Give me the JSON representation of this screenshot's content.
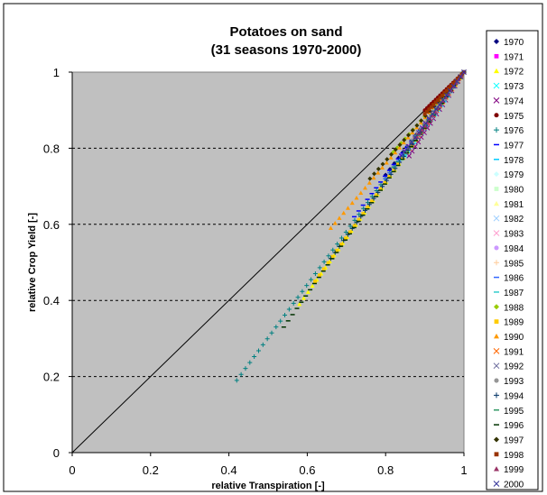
{
  "chart_data": {
    "type": "scatter",
    "title": "Potatoes on sand",
    "subtitle": "(31 seasons 1970-2000)",
    "xlabel": "relative Transpiration [-]",
    "ylabel": "relative Crop Yield [-]",
    "xlim": [
      0,
      1
    ],
    "ylim": [
      0,
      1
    ],
    "xticks": [
      "0",
      "0.2",
      "0.4",
      "0.6",
      "0.8",
      "1"
    ],
    "yticks": [
      "0",
      "0.2",
      "0.4",
      "0.6",
      "0.8",
      "1"
    ],
    "grid": "horizontal dashed",
    "plot_background": "#c0c0c0",
    "legend_position": "right",
    "reference_line": {
      "from": [
        0,
        0
      ],
      "to": [
        1,
        1
      ],
      "color": "#000000"
    },
    "series": [
      {
        "name": "1970",
        "color": "#000080",
        "marker": "diamond",
        "xmin": 0.8,
        "ymin": 0.73
      },
      {
        "name": "1971",
        "color": "#ff00ff",
        "marker": "square",
        "xmin": 0.84,
        "ymin": 0.78
      },
      {
        "name": "1972",
        "color": "#ffff00",
        "marker": "triangle",
        "xmin": 0.58,
        "ymin": 0.39
      },
      {
        "name": "1973",
        "color": "#00ffff",
        "marker": "x",
        "xmin": 0.85,
        "ymin": 0.78
      },
      {
        "name": "1974",
        "color": "#800080",
        "marker": "x",
        "xmin": 0.86,
        "ymin": 0.78
      },
      {
        "name": "1975",
        "color": "#800000",
        "marker": "circle",
        "xmin": 0.9,
        "ymin": 0.9
      },
      {
        "name": "1976",
        "color": "#008080",
        "marker": "plus",
        "xmin": 0.42,
        "ymin": 0.19
      },
      {
        "name": "1977",
        "color": "#0000ff",
        "marker": "dash",
        "xmin": 0.72,
        "ymin": 0.62
      },
      {
        "name": "1978",
        "color": "#00ccff",
        "marker": "dash",
        "xmin": 0.84,
        "ymin": 0.77
      },
      {
        "name": "1979",
        "color": "#ccffff",
        "marker": "diamond",
        "xmin": 0.86,
        "ymin": 0.8
      },
      {
        "name": "1980",
        "color": "#ccffcc",
        "marker": "square",
        "xmin": 0.87,
        "ymin": 0.82
      },
      {
        "name": "1981",
        "color": "#ffff99",
        "marker": "triangle",
        "xmin": 0.86,
        "ymin": 0.8
      },
      {
        "name": "1982",
        "color": "#99ccff",
        "marker": "x",
        "xmin": 0.85,
        "ymin": 0.79
      },
      {
        "name": "1983",
        "color": "#ff99cc",
        "marker": "x",
        "xmin": 0.86,
        "ymin": 0.8
      },
      {
        "name": "1984",
        "color": "#cc99ff",
        "marker": "circle",
        "xmin": 0.86,
        "ymin": 0.8
      },
      {
        "name": "1985",
        "color": "#ffcc99",
        "marker": "plus",
        "xmin": 0.87,
        "ymin": 0.82
      },
      {
        "name": "1986",
        "color": "#3366ff",
        "marker": "dash",
        "xmin": 0.8,
        "ymin": 0.72
      },
      {
        "name": "1987",
        "color": "#33cccc",
        "marker": "dash",
        "xmin": 0.82,
        "ymin": 0.74
      },
      {
        "name": "1988",
        "color": "#99cc00",
        "marker": "diamond",
        "xmin": 0.82,
        "ymin": 0.79
      },
      {
        "name": "1989",
        "color": "#ffcc00",
        "marker": "square",
        "xmin": 0.62,
        "ymin": 0.45
      },
      {
        "name": "1990",
        "color": "#ff9900",
        "marker": "triangle",
        "xmin": 0.66,
        "ymin": 0.59
      },
      {
        "name": "1991",
        "color": "#ff6600",
        "marker": "x",
        "xmin": 0.86,
        "ymin": 0.8
      },
      {
        "name": "1992",
        "color": "#666699",
        "marker": "x",
        "xmin": 0.85,
        "ymin": 0.79
      },
      {
        "name": "1993",
        "color": "#969696",
        "marker": "circle",
        "xmin": 0.87,
        "ymin": 0.82
      },
      {
        "name": "1994",
        "color": "#003366",
        "marker": "plus",
        "xmin": 0.66,
        "ymin": 0.51
      },
      {
        "name": "1995",
        "color": "#339966",
        "marker": "dash",
        "xmin": 0.82,
        "ymin": 0.75
      },
      {
        "name": "1996",
        "color": "#003300",
        "marker": "dash",
        "xmin": 0.54,
        "ymin": 0.33
      },
      {
        "name": "1997",
        "color": "#333300",
        "marker": "diamond",
        "xmin": 0.76,
        "ymin": 0.72
      },
      {
        "name": "1998",
        "color": "#993300",
        "marker": "square",
        "xmin": 0.9,
        "ymin": 0.89
      },
      {
        "name": "1999",
        "color": "#993366",
        "marker": "triangle",
        "xmin": 0.88,
        "ymin": 0.83
      },
      {
        "name": "2000",
        "color": "#333399",
        "marker": "x",
        "xmin": 0.84,
        "ymin": 0.78
      }
    ]
  }
}
